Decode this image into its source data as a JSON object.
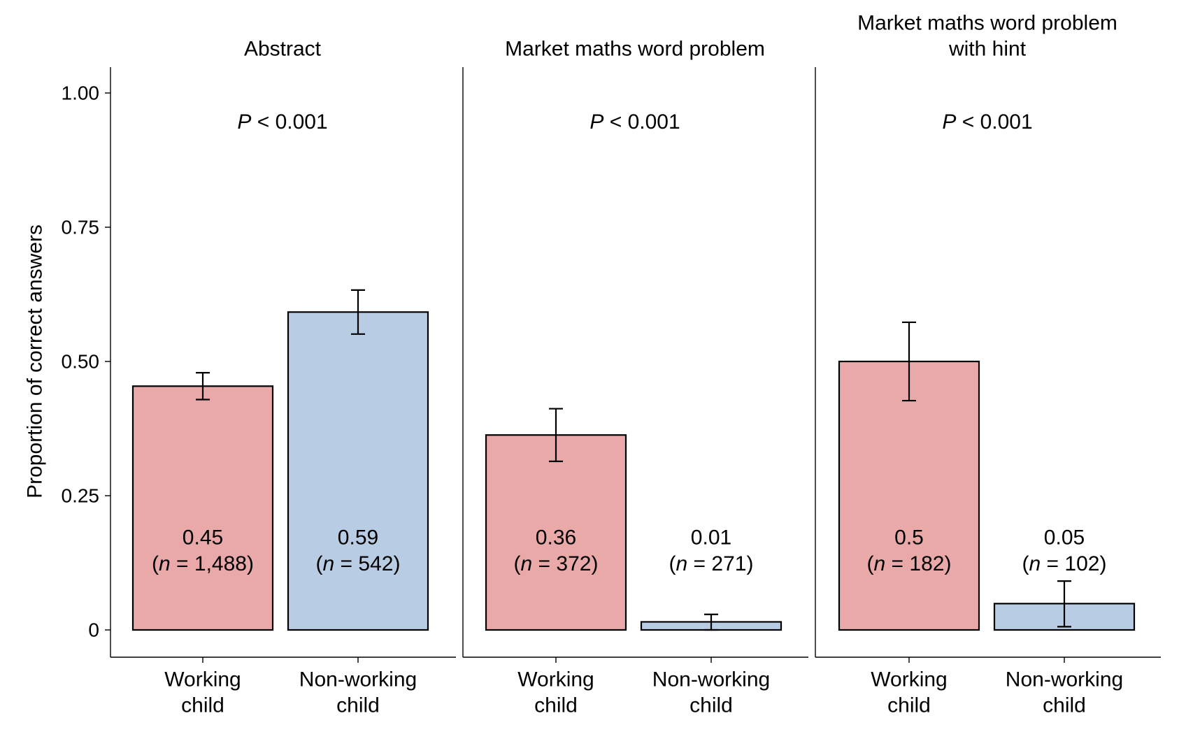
{
  "chart_data": {
    "type": "bar",
    "ylabel": "Proportion of correct answers",
    "ylim": [
      0,
      1.05
    ],
    "yticks": [
      {
        "value": 0,
        "label": "0"
      },
      {
        "value": 0.25,
        "label": "0.25"
      },
      {
        "value": 0.5,
        "label": "0.50"
      },
      {
        "value": 0.75,
        "label": "0.75"
      },
      {
        "value": 1.0,
        "label": "1.00"
      }
    ],
    "colors": {
      "Working child": "#eaa9a9",
      "Non-working child": "#b8cde3"
    },
    "grid": false,
    "panels": [
      {
        "title": [
          "Abstract"
        ],
        "p_prefix": "P",
        "p_suffix": " < 0.001",
        "bars": [
          {
            "category": [
              "Working",
              "child"
            ],
            "group": "Working child",
            "value": 0.454,
            "err_low": 0.429,
            "err_high": 0.479,
            "label_value": "0.45",
            "n_open": "(",
            "n_sym": "n",
            "n_rest": " = 1,488)"
          },
          {
            "category": [
              "Non-working",
              "child"
            ],
            "group": "Non-working child",
            "value": 0.592,
            "err_low": 0.551,
            "err_high": 0.633,
            "label_value": "0.59",
            "n_open": "(",
            "n_sym": "n",
            "n_rest": " = 542)"
          }
        ]
      },
      {
        "title": [
          "Market maths word problem"
        ],
        "p_prefix": "P",
        "p_suffix": " < 0.001",
        "bars": [
          {
            "category": [
              "Working",
              "child"
            ],
            "group": "Working child",
            "value": 0.363,
            "err_low": 0.314,
            "err_high": 0.412,
            "label_value": "0.36",
            "n_open": "(",
            "n_sym": "n",
            "n_rest": " = 372)"
          },
          {
            "category": [
              "Non-working",
              "child"
            ],
            "group": "Non-working child",
            "value": 0.015,
            "err_low": 0.0,
            "err_high": 0.029,
            "label_value": "0.01",
            "n_open": "(",
            "n_sym": "n",
            "n_rest": " = 271)"
          }
        ]
      },
      {
        "title": [
          "Market maths word problem",
          "with hint"
        ],
        "p_prefix": "P",
        "p_suffix": " < 0.001",
        "bars": [
          {
            "category": [
              "Working",
              "child"
            ],
            "group": "Working child",
            "value": 0.5,
            "err_low": 0.427,
            "err_high": 0.573,
            "label_value": "0.5",
            "n_open": "(",
            "n_sym": "n",
            "n_rest": " = 182)"
          },
          {
            "category": [
              "Non-working",
              "child"
            ],
            "group": "Non-working child",
            "value": 0.049,
            "err_low": 0.006,
            "err_high": 0.091,
            "label_value": "0.05",
            "n_open": "(",
            "n_sym": "n",
            "n_rest": " = 102)"
          }
        ]
      }
    ]
  }
}
